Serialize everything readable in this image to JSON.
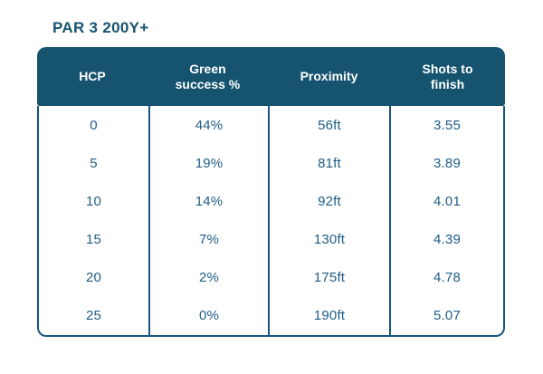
{
  "title": "PAR 3 200Y+",
  "colors": {
    "header_background": "#15536F",
    "table_border": "#16567D",
    "body_text": "#1E5D86",
    "header_text": "#FFFFFF",
    "title_text": "#15536F",
    "page_background": "#FFFFFF"
  },
  "chart_data": {
    "type": "table",
    "title": "PAR 3 200Y+",
    "columns": [
      "HCP",
      "Green success %",
      "Proximity",
      "Shots to finish"
    ],
    "rows": [
      [
        "0",
        "44%",
        "56ft",
        "3.55"
      ],
      [
        "5",
        "19%",
        "81ft",
        "3.89"
      ],
      [
        "10",
        "14%",
        "92ft",
        "4.01"
      ],
      [
        "15",
        "7%",
        "130ft",
        "4.39"
      ],
      [
        "20",
        "2%",
        "175ft",
        "4.78"
      ],
      [
        "25",
        "0%",
        "190ft",
        "5.07"
      ]
    ]
  }
}
